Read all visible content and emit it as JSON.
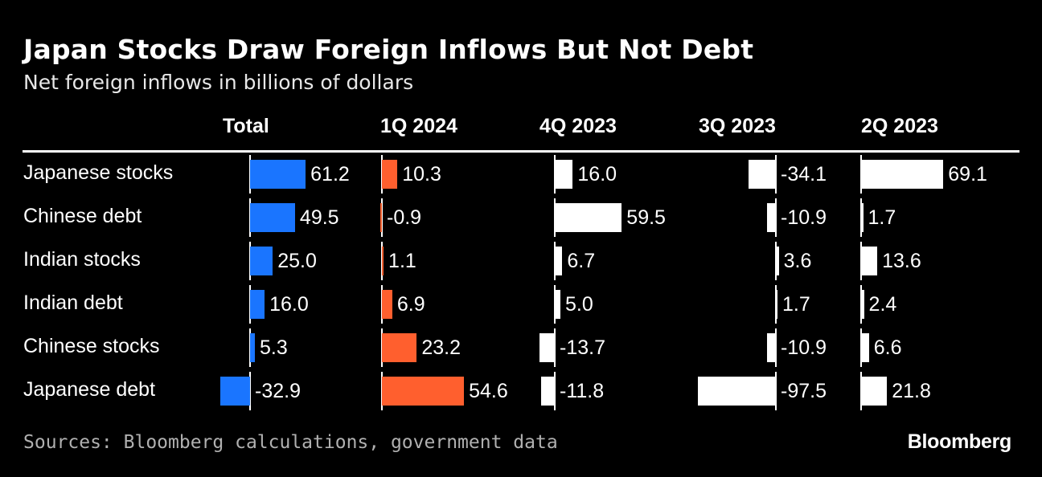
{
  "title": "Japan Stocks Draw Foreign Inflows But Not Debt",
  "subtitle": "Net foreign inflows in billions of dollars",
  "source": "Sources: Bloomberg calculations, government data",
  "logo": "Bloomberg",
  "colors": {
    "total": "#1a75ff",
    "q1_2024": "#ff5f2e",
    "other": "#ffffff",
    "background": "#000000"
  },
  "chart_data": {
    "type": "bar",
    "title": "Japan Stocks Draw Foreign Inflows But Not Debt",
    "subtitle": "Net foreign inflows in billions of dollars",
    "categories": [
      "Japanese stocks",
      "Chinese debt",
      "Indian stocks",
      "Indian debt",
      "Chinese stocks",
      "Japanese debt"
    ],
    "series": [
      {
        "name": "Total",
        "values": [
          61.2,
          49.5,
          25.0,
          16.0,
          5.3,
          -32.9
        ],
        "labels": [
          "61.2",
          "49.5",
          "25.0",
          "16.0",
          "5.3",
          "-32.9"
        ]
      },
      {
        "name": "1Q 2024",
        "values": [
          10.3,
          -0.9,
          1.1,
          6.9,
          23.2,
          54.6
        ],
        "labels": [
          "10.3",
          "-0.9",
          "1.1",
          "6.9",
          "23.2",
          "54.6"
        ]
      },
      {
        "name": "4Q 2023",
        "values": [
          16.0,
          59.5,
          6.7,
          5.0,
          -13.7,
          -11.8
        ],
        "labels": [
          "16.0",
          "59.5",
          "6.7",
          "5.0",
          "-13.7",
          "-11.8"
        ]
      },
      {
        "name": "3Q 2023",
        "values": [
          -34.1,
          -10.9,
          3.6,
          1.7,
          -10.9,
          -97.5
        ],
        "labels": [
          "-34.1",
          "-10.9",
          "3.6",
          "1.7",
          "-10.9",
          "-97.5"
        ]
      },
      {
        "name": "2Q 2023",
        "values": [
          69.1,
          1.7,
          13.6,
          2.4,
          6.6,
          21.8
        ],
        "labels": [
          "69.1",
          "1.7",
          "13.6",
          "2.4",
          "6.6",
          "21.8"
        ]
      }
    ]
  }
}
